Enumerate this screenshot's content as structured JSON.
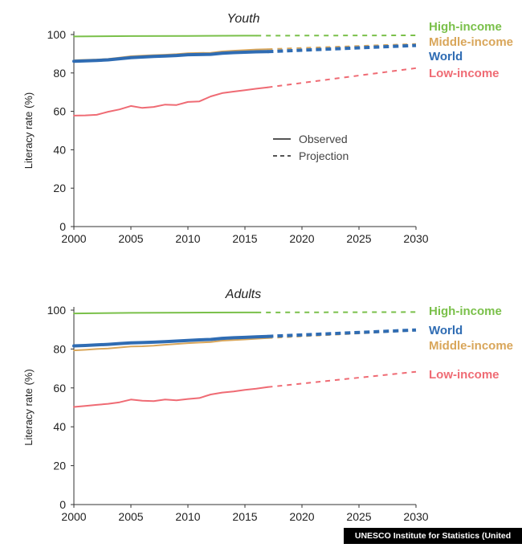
{
  "credit": "UNESCO Institute for Statistics (United Nations)",
  "colors": {
    "high": "#7ac04a",
    "middle": "#d9a65a",
    "world": "#2f6cb3",
    "low": "#ef6b74",
    "axis": "#333333"
  },
  "chart_data": [
    {
      "type": "line",
      "title": "Youth",
      "xlabel": "",
      "ylabel": "Literacy rate (%)",
      "xlim": [
        2000,
        2030
      ],
      "ylim": [
        0,
        100
      ],
      "xticks": [
        2000,
        2005,
        2010,
        2015,
        2020,
        2025,
        2030
      ],
      "yticks": [
        0,
        20,
        40,
        60,
        80,
        100
      ],
      "legend": {
        "position": "center-right",
        "entries": [
          {
            "label": "Observed",
            "style": "solid"
          },
          {
            "label": "Projection",
            "style": "dashed"
          }
        ]
      },
      "series": [
        {
          "name": "High-income",
          "key": "high",
          "width": 2,
          "observed": {
            "x": [
              2000,
              2005,
              2010,
              2015,
              2016
            ],
            "y": [
              99.0,
              99.2,
              99.3,
              99.4,
              99.4
            ]
          },
          "projection": {
            "x": [
              2016,
              2030
            ],
            "y": [
              99.4,
              99.6
            ]
          }
        },
        {
          "name": "Middle-income",
          "key": "middle",
          "width": 2,
          "observed": {
            "x": [
              2000,
              2001,
              2002,
              2003,
              2004,
              2005,
              2006,
              2007,
              2008,
              2009,
              2010,
              2011,
              2012,
              2013,
              2014,
              2015,
              2016,
              2017
            ],
            "y": [
              86.6,
              86.8,
              87.0,
              87.3,
              88.0,
              88.7,
              89.0,
              89.3,
              89.5,
              89.8,
              90.3,
              90.4,
              90.5,
              91.2,
              91.6,
              91.9,
              92.2,
              92.4
            ]
          },
          "projection": {
            "x": [
              2017,
              2030
            ],
            "y": [
              92.4,
              95.1
            ]
          }
        },
        {
          "name": "World",
          "key": "world",
          "width": 4,
          "observed": {
            "x": [
              2000,
              2001,
              2002,
              2003,
              2004,
              2005,
              2006,
              2007,
              2008,
              2009,
              2010,
              2011,
              2012,
              2013,
              2014,
              2015,
              2016,
              2017
            ],
            "y": [
              86.1,
              86.3,
              86.5,
              86.8,
              87.4,
              88.0,
              88.3,
              88.6,
              88.8,
              89.1,
              89.5,
              89.6,
              89.7,
              90.3,
              90.6,
              90.8,
              91.0,
              91.1
            ]
          },
          "projection": {
            "x": [
              2017,
              2030
            ],
            "y": [
              91.1,
              94.3
            ]
          }
        },
        {
          "name": "Low-income",
          "key": "low",
          "width": 2,
          "observed": {
            "x": [
              2000,
              2001,
              2002,
              2003,
              2004,
              2005,
              2006,
              2007,
              2008,
              2009,
              2010,
              2011,
              2012,
              2013,
              2014,
              2015,
              2016,
              2017
            ],
            "y": [
              57.8,
              57.9,
              58.2,
              59.8,
              61.0,
              62.8,
              61.8,
              62.3,
              63.5,
              63.3,
              64.9,
              65.2,
              67.8,
              69.5,
              70.3,
              71.0,
              71.8,
              72.5
            ]
          },
          "projection": {
            "x": [
              2017,
              2030
            ],
            "y": [
              72.5,
              82.5
            ]
          }
        }
      ],
      "series_labels": [
        {
          "key": "high",
          "text": "High-income"
        },
        {
          "key": "middle",
          "text": "Middle-income"
        },
        {
          "key": "world",
          "text": "World"
        },
        {
          "key": "low",
          "text": "Low-income"
        }
      ]
    },
    {
      "type": "line",
      "title": "Adults",
      "xlabel": "",
      "ylabel": "Literacy rate (%)",
      "xlim": [
        2000,
        2030
      ],
      "ylim": [
        0,
        100
      ],
      "xticks": [
        2000,
        2005,
        2010,
        2015,
        2020,
        2025,
        2030
      ],
      "yticks": [
        0,
        20,
        40,
        60,
        80,
        100
      ],
      "series": [
        {
          "name": "High-income",
          "key": "high",
          "width": 2,
          "observed": {
            "x": [
              2000,
              2005,
              2010,
              2015,
              2016
            ],
            "y": [
              98.3,
              98.6,
              98.7,
              98.8,
              98.8
            ]
          },
          "projection": {
            "x": [
              2016,
              2030
            ],
            "y": [
              98.8,
              99.0
            ]
          }
        },
        {
          "name": "Middle-income",
          "key": "middle",
          "width": 2,
          "observed": {
            "x": [
              2000,
              2001,
              2002,
              2003,
              2004,
              2005,
              2006,
              2007,
              2008,
              2009,
              2010,
              2011,
              2012,
              2013,
              2014,
              2015,
              2016,
              2017
            ],
            "y": [
              79.3,
              79.6,
              80.0,
              80.3,
              80.8,
              81.3,
              81.4,
              81.7,
              82.2,
              82.6,
              83.0,
              83.3,
              83.6,
              84.3,
              84.6,
              84.9,
              85.3,
              85.6
            ]
          },
          "projection": {
            "x": [
              2017,
              2030
            ],
            "y": [
              85.6,
              89.5
            ]
          }
        },
        {
          "name": "World",
          "key": "world",
          "width": 4,
          "observed": {
            "x": [
              2000,
              2001,
              2002,
              2003,
              2004,
              2005,
              2006,
              2007,
              2008,
              2009,
              2010,
              2011,
              2012,
              2013,
              2014,
              2015,
              2016,
              2017
            ],
            "y": [
              81.6,
              81.8,
              82.1,
              82.4,
              82.8,
              83.2,
              83.3,
              83.5,
              83.8,
              84.1,
              84.4,
              84.7,
              84.9,
              85.5,
              85.8,
              86.0,
              86.3,
              86.5
            ]
          },
          "projection": {
            "x": [
              2017,
              2030
            ],
            "y": [
              86.5,
              89.8
            ]
          }
        },
        {
          "name": "Low-income",
          "key": "low",
          "width": 2,
          "observed": {
            "x": [
              2000,
              2001,
              2002,
              2003,
              2004,
              2005,
              2006,
              2007,
              2008,
              2009,
              2010,
              2011,
              2012,
              2013,
              2014,
              2015,
              2016,
              2017
            ],
            "y": [
              50.2,
              50.7,
              51.3,
              51.8,
              52.6,
              54.0,
              53.4,
              53.2,
              54.0,
              53.6,
              54.3,
              54.8,
              56.6,
              57.6,
              58.2,
              59.0,
              59.6,
              60.4
            ]
          },
          "projection": {
            "x": [
              2017,
              2030
            ],
            "y": [
              60.4,
              68.3
            ]
          }
        }
      ],
      "series_labels": [
        {
          "key": "high",
          "text": "High-income"
        },
        {
          "key": "world",
          "text": "World"
        },
        {
          "key": "middle",
          "text": "Middle-income"
        },
        {
          "key": "low",
          "text": "Low-income"
        }
      ]
    }
  ]
}
